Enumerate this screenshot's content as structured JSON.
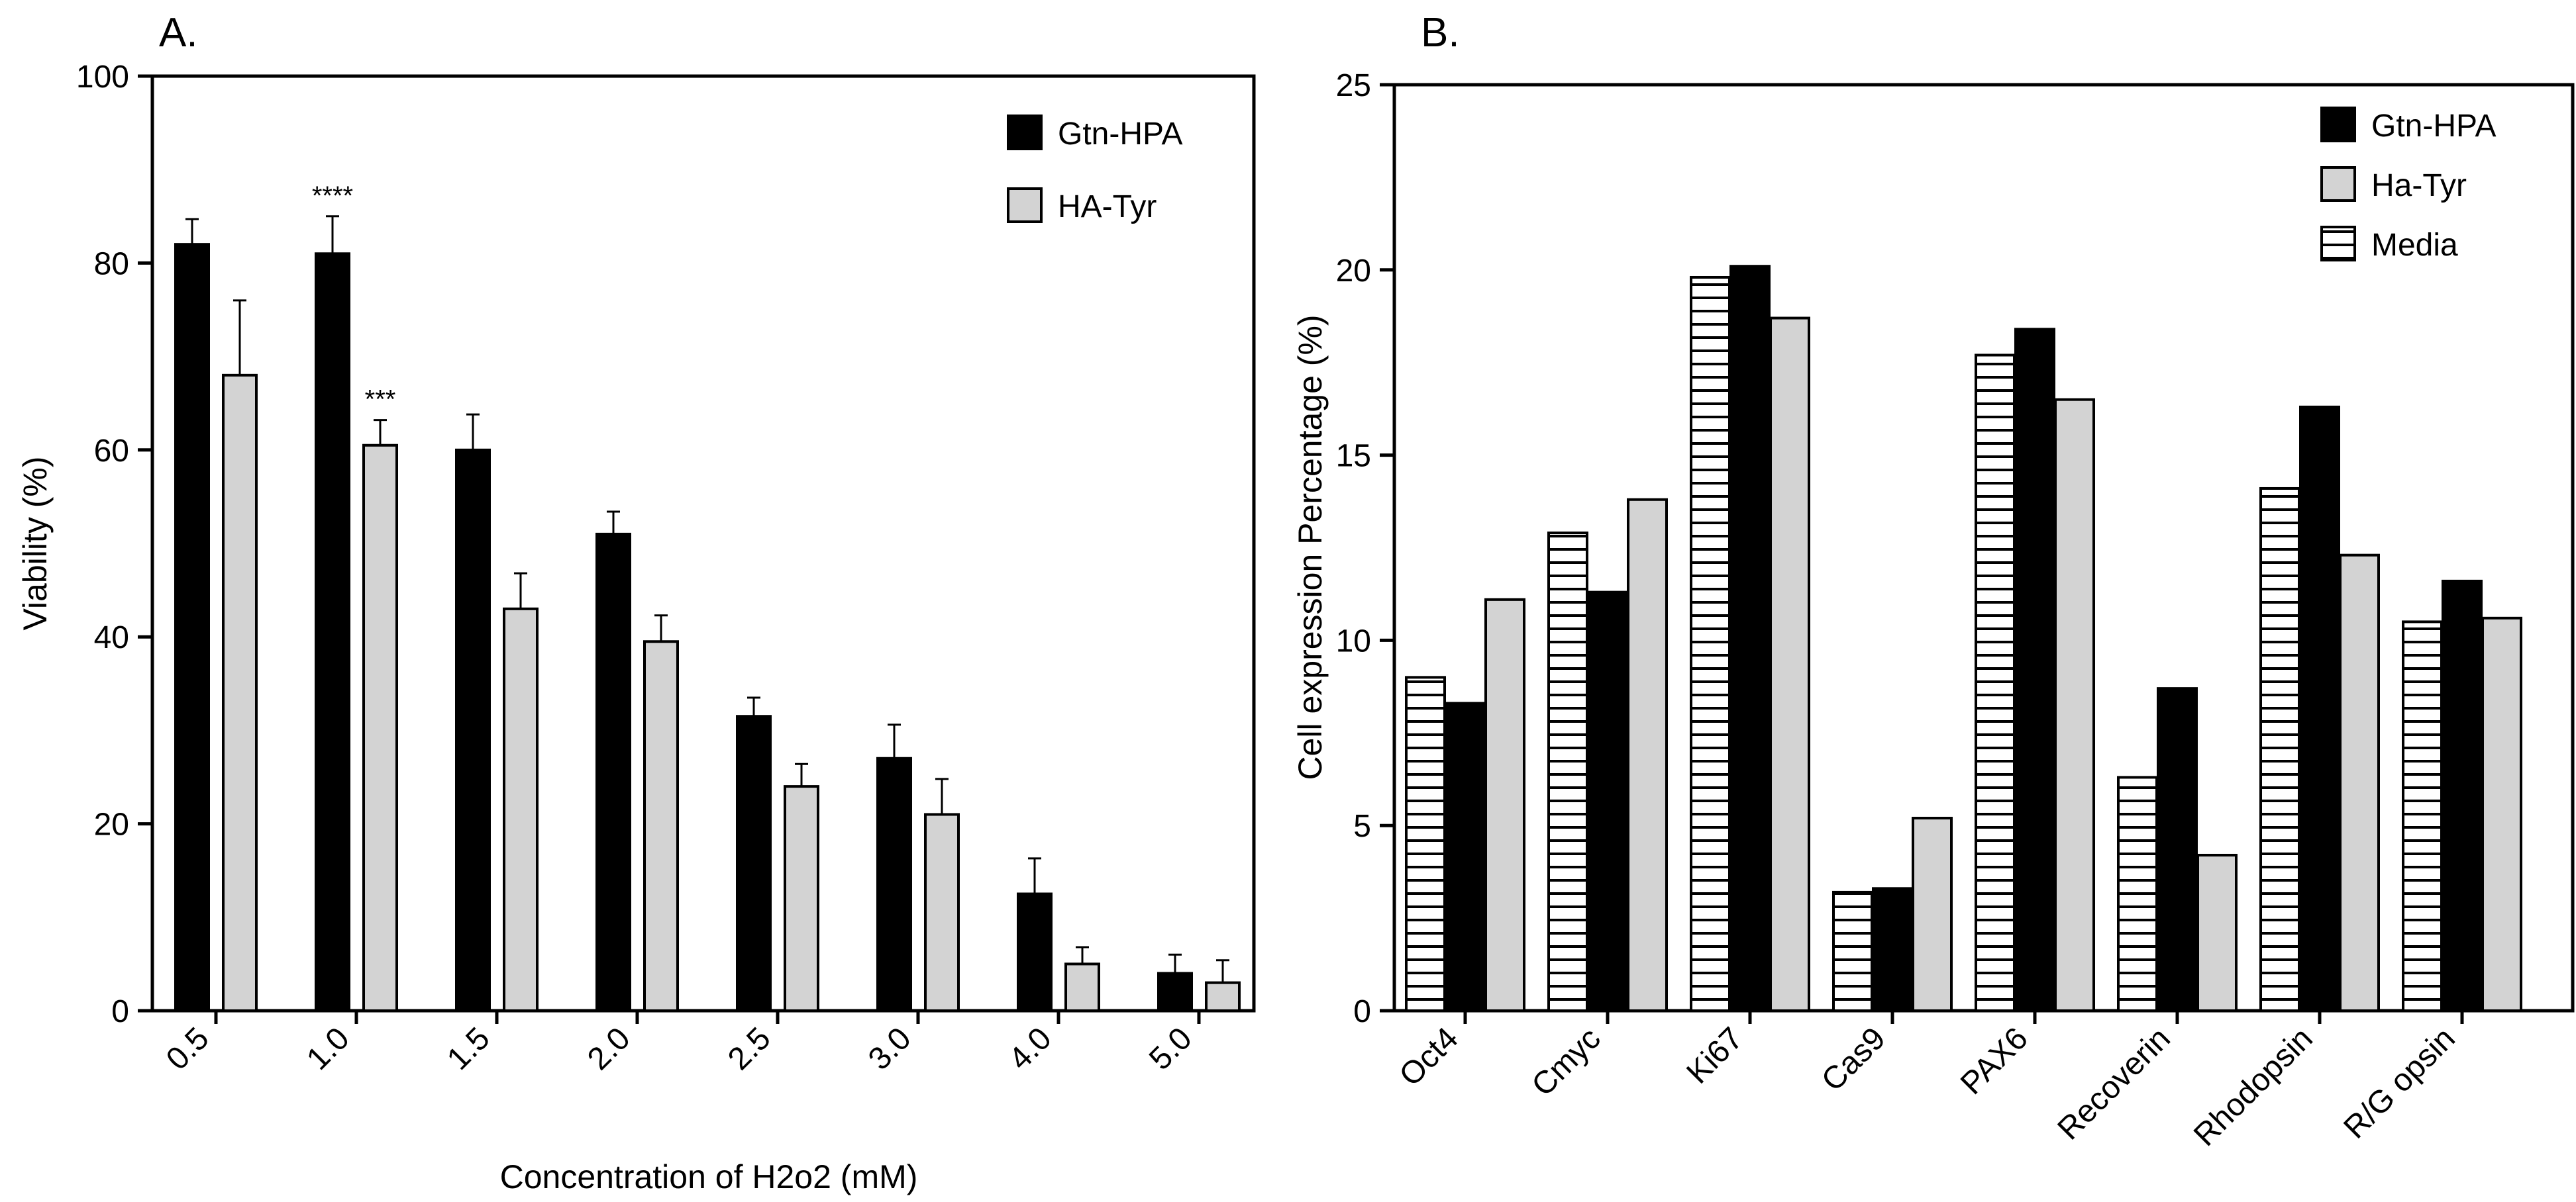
{
  "figure": {
    "background": "#ffffff",
    "colors": {
      "gtn": "#000000",
      "ha": "#d3d3d3",
      "media": "#ffffff",
      "axis": "#000000"
    }
  },
  "chart_data": [
    {
      "id": "A",
      "panel_label": "A.",
      "type": "bar",
      "xlabel": "Concentration of H2o2 (mM)",
      "ylabel": "Viability (%)",
      "ylim": [
        0,
        100
      ],
      "yticks": [
        0,
        20,
        40,
        60,
        80,
        100
      ],
      "grid": false,
      "legend_position": "top-right",
      "categories": [
        "0.5",
        "1.0",
        "1.5",
        "2.0",
        "2.5",
        "3.0",
        "4.0",
        "5.0"
      ],
      "series": [
        {
          "name": "Gtn-HPA",
          "fill": "black",
          "values": [
            82,
            81,
            60,
            51,
            31.5,
            27,
            12.5,
            4
          ],
          "errors": [
            2.7,
            4,
            3.8,
            2.4,
            2,
            3.6,
            3.8,
            2
          ],
          "significance": [
            "",
            "****",
            "",
            "",
            "",
            "",
            "",
            ""
          ]
        },
        {
          "name": "HA-Tyr",
          "fill": "gray",
          "values": [
            68,
            60.5,
            43,
            39.5,
            24,
            21,
            5,
            3
          ],
          "errors": [
            8,
            2.7,
            3.8,
            2.8,
            2.4,
            3.8,
            1.8,
            2.4
          ],
          "significance": [
            "",
            "***",
            "",
            "",
            "",
            "",
            "",
            ""
          ]
        }
      ]
    },
    {
      "id": "B",
      "panel_label": "B.",
      "type": "bar",
      "xlabel": "",
      "ylabel": "Cell expression Percentage (%)",
      "ylim": [
        0,
        25
      ],
      "yticks": [
        0,
        5,
        10,
        15,
        20,
        25
      ],
      "grid": false,
      "legend_position": "top-right",
      "categories": [
        "Oct4",
        "Cmyc",
        "Ki67",
        "Cas9",
        "PAX6",
        "Recoverin",
        "Rhodopsin",
        "R/G opsin"
      ],
      "series": [
        {
          "name": "Media",
          "fill": "hatch",
          "values": [
            9,
            12.9,
            19.8,
            3.2,
            17.7,
            6.3,
            14.1,
            10.5
          ]
        },
        {
          "name": "Gtn-HPA",
          "fill": "black",
          "values": [
            8.3,
            11.3,
            20.1,
            3.3,
            18.4,
            8.7,
            16.3,
            11.6
          ]
        },
        {
          "name": "Ha-Tyr",
          "fill": "gray",
          "values": [
            11.1,
            13.8,
            18.7,
            5.2,
            16.5,
            4.2,
            12.3,
            10.6
          ]
        }
      ],
      "legend_order": [
        "Gtn-HPA",
        "Ha-Tyr",
        "Media"
      ]
    }
  ]
}
